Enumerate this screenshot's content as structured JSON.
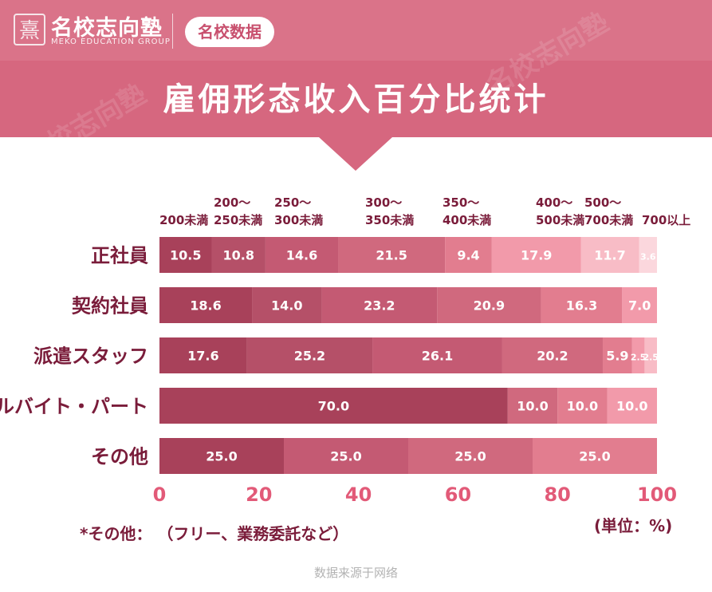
{
  "header": {
    "logo_mark": "熹",
    "logo_name": "名校志向塾",
    "logo_sub": "MEKO EDUCATION GROUP",
    "badge": "名校数据",
    "title": "雇佣形态收入百分比统计"
  },
  "colors": {
    "header_bg": "#d6677f",
    "text_dark": "#7a1c3a",
    "axis_text": "#e25a78",
    "bar_track": "#fbe5e9",
    "segments": [
      "#a8415a",
      "#b55068",
      "#c45a73",
      "#d0697e",
      "#e27d8f",
      "#f29aaa",
      "#f8bcc6",
      "#fbd7dd"
    ]
  },
  "chart_data": {
    "type": "bar",
    "orientation": "horizontal",
    "stacked": true,
    "categories": [
      "正社員",
      "契約社員",
      "派遣スタッフ",
      "アルバイト・パート",
      "その他"
    ],
    "series": [
      {
        "name": "200未満",
        "legend_lines": [
          "",
          "200未満"
        ],
        "values": [
          10.5,
          18.6,
          17.6,
          70.0,
          25.0
        ]
      },
      {
        "name": "200～250未満",
        "legend_lines": [
          "200～",
          "250未満"
        ],
        "values": [
          10.8,
          14.0,
          25.2,
          0,
          0
        ]
      },
      {
        "name": "250～300未満",
        "legend_lines": [
          "250～",
          "300未満"
        ],
        "values": [
          14.6,
          23.2,
          26.1,
          0,
          25.0
        ]
      },
      {
        "name": "300～350未満",
        "legend_lines": [
          "300～",
          "350未満"
        ],
        "values": [
          21.5,
          20.9,
          20.2,
          10.0,
          25.0
        ]
      },
      {
        "name": "350～400未満",
        "legend_lines": [
          "350～",
          "400未満"
        ],
        "values": [
          9.4,
          16.3,
          5.9,
          10.0,
          25.0
        ]
      },
      {
        "name": "400～500未満",
        "legend_lines": [
          "400～",
          "500未満"
        ],
        "values": [
          17.9,
          7.0,
          2.5,
          10.0,
          0
        ]
      },
      {
        "name": "500～700未満",
        "legend_lines": [
          "500～",
          "700未満"
        ],
        "values": [
          11.7,
          0,
          2.5,
          0,
          0
        ]
      },
      {
        "name": "700以上",
        "legend_lines": [
          "",
          "700以上"
        ],
        "values": [
          3.6,
          0,
          0,
          0,
          0
        ]
      }
    ],
    "xlim": [
      0,
      100
    ],
    "xticks": [
      0,
      20,
      40,
      60,
      80,
      100
    ],
    "grid": false
  },
  "footnote": "*その他： （フリー、業務委託など）",
  "unit_label": "(単位：%)",
  "source": "数据来源于网络"
}
